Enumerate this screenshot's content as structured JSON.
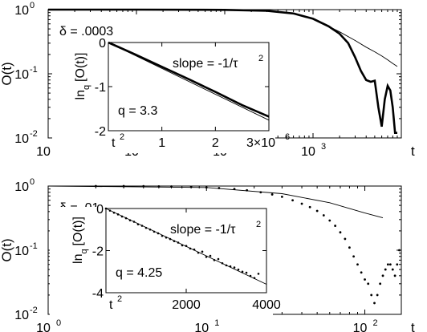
{
  "chart_data": [
    {
      "type": "line",
      "panel": "top",
      "ylabel": "O(t)",
      "xlabel": "t",
      "xscale": "log",
      "yscale": "log",
      "xlim": [
        1,
        10000
      ],
      "ylim": [
        0.01,
        1
      ],
      "xtick_labels": [
        "10",
        "10",
        "10",
        "10"
      ],
      "xtick_exponents": [
        "0",
        "1",
        "2",
        "3"
      ],
      "ytick_labels": [
        "10",
        "10",
        "10"
      ],
      "ytick_exponents": [
        "0",
        "-1",
        "-2"
      ],
      "annotation": "δ = .0003",
      "series": [
        {
          "style": "thick-line",
          "x": [
            1,
            10,
            100,
            300,
            600,
            1000,
            1500,
            2000,
            2500,
            3000,
            3500,
            4000,
            4500,
            5000,
            5500,
            6000,
            6500,
            7000,
            7500,
            8000,
            8500,
            9000
          ],
          "y": [
            1.0,
            0.999,
            0.99,
            0.96,
            0.87,
            0.72,
            0.55,
            0.42,
            0.3,
            0.18,
            0.11,
            0.08,
            0.075,
            0.078,
            0.03,
            0.015,
            0.04,
            0.065,
            0.055,
            0.03,
            0.012,
            0.012
          ]
        },
        {
          "style": "thin-line",
          "x": [
            1,
            10,
            100,
            300,
            600,
            1000,
            1500,
            2000,
            3000,
            4000,
            5000,
            6000,
            7000,
            8000,
            9000
          ],
          "y": [
            1.0,
            0.999,
            0.99,
            0.96,
            0.87,
            0.72,
            0.55,
            0.45,
            0.33,
            0.26,
            0.22,
            0.19,
            0.165,
            0.145,
            0.13
          ]
        }
      ],
      "inset": {
        "ylabel": "ln",
        "ylabel_sub": "q",
        "ylabel_rest": "[O(t)]",
        "xlim": [
          0,
          3000000
        ],
        "ylim": [
          -2,
          0
        ],
        "xtick_labels": [
          "t",
          "1",
          "2",
          "3×10"
        ],
        "xtick_label_sups": [
          "2",
          "",
          "",
          "6"
        ],
        "ytick_labels": [
          "0",
          "-1",
          "-2"
        ],
        "slope_label": "slope = -1/τ",
        "slope_label_sup": "2",
        "q_label": "q = 3.3",
        "series": [
          {
            "style": "thick-line",
            "x": [
              0,
              500000,
              1000000,
              1500000,
              2000000,
              2500000,
              3000000
            ],
            "y": [
              0,
              -0.27,
              -0.55,
              -0.83,
              -1.12,
              -1.42,
              -1.68
            ]
          },
          {
            "style": "thin-line",
            "x": [
              0,
              3000000
            ],
            "y": [
              0,
              -1.76
            ]
          }
        ]
      }
    },
    {
      "type": "scatter",
      "panel": "bottom",
      "ylabel": "O(t)",
      "xlabel": "t",
      "xscale": "log",
      "yscale": "log",
      "xlim": [
        1,
        170
      ],
      "ylim": [
        0.01,
        1
      ],
      "xtick_labels": [
        "10",
        "10",
        "10"
      ],
      "xtick_exponents": [
        "0",
        "1",
        "2"
      ],
      "ytick_labels": [
        "10",
        "10",
        "10"
      ],
      "ytick_exponents": [
        "0",
        "-1",
        "-2"
      ],
      "annotation": "δ = .01",
      "series": [
        {
          "style": "dots",
          "x": [
            2,
            3,
            4,
            5,
            6,
            8,
            10,
            12,
            15,
            18,
            22,
            26,
            30,
            35,
            40,
            45,
            50,
            55,
            60,
            65,
            70,
            75,
            80,
            85,
            90,
            95,
            100,
            105,
            110,
            115,
            120,
            125,
            130,
            135,
            140,
            145,
            150,
            155,
            160,
            165
          ],
          "y": [
            1.0,
            0.998,
            0.995,
            0.99,
            0.985,
            0.97,
            0.95,
            0.93,
            0.9,
            0.86,
            0.8,
            0.74,
            0.68,
            0.6,
            0.53,
            0.47,
            0.41,
            0.35,
            0.29,
            0.24,
            0.19,
            0.15,
            0.11,
            0.08,
            0.06,
            0.045,
            0.035,
            0.03,
            0.02,
            0.015,
            0.02,
            0.03,
            0.04,
            0.05,
            0.06,
            0.06,
            0.05,
            0.04,
            0.06,
            0.1
          ]
        },
        {
          "style": "thin-line",
          "x": [
            1,
            10,
            30,
            60,
            100,
            130
          ],
          "y": [
            1.0,
            0.95,
            0.76,
            0.55,
            0.38,
            0.32
          ]
        }
      ],
      "inset": {
        "ylabel": "ln",
        "ylabel_sub": "q",
        "ylabel_rest": "[O(t)]",
        "xlim": [
          0,
          4000
        ],
        "ylim": [
          -4,
          0
        ],
        "xtick_labels": [
          "t",
          "2000",
          "4000"
        ],
        "xtick_label_sups": [
          "2",
          "",
          ""
        ],
        "ytick_labels": [
          "0",
          "-2",
          "-4"
        ],
        "slope_label": "slope = -1/τ",
        "slope_label_sup": "2",
        "q_label": "q = 4.25",
        "series": [
          {
            "style": "thin-line",
            "x": [
              0,
              4000
            ],
            "y": [
              0,
              -3.6
            ]
          },
          {
            "style": "dots",
            "x": [
              0,
              100,
              200,
              300,
              400,
              500,
              600,
              700,
              800,
              900,
              1000,
              1100,
              1200,
              1300,
              1400,
              1500,
              1600,
              1700,
              1800,
              1900,
              2000,
              2100,
              2200,
              2300,
              2400,
              2500,
              2600,
              2700,
              2800,
              2900,
              3000,
              3100,
              3200,
              3300,
              3400,
              3500,
              3600,
              3700,
              3800
            ],
            "y": [
              0,
              -0.1,
              -0.2,
              -0.28,
              -0.38,
              -0.46,
              -0.56,
              -0.63,
              -0.75,
              -0.82,
              -0.92,
              -1.0,
              -1.1,
              -1.18,
              -1.3,
              -1.38,
              -1.45,
              -1.55,
              -1.62,
              -1.75,
              -1.78,
              -1.9,
              -1.95,
              -2.1,
              -2.05,
              -2.3,
              -2.25,
              -2.45,
              -2.4,
              -2.6,
              -2.7,
              -2.75,
              -2.8,
              -2.9,
              -3.0,
              -3.05,
              -3.2,
              -3.3,
              -3.1
            ]
          }
        ]
      }
    }
  ]
}
